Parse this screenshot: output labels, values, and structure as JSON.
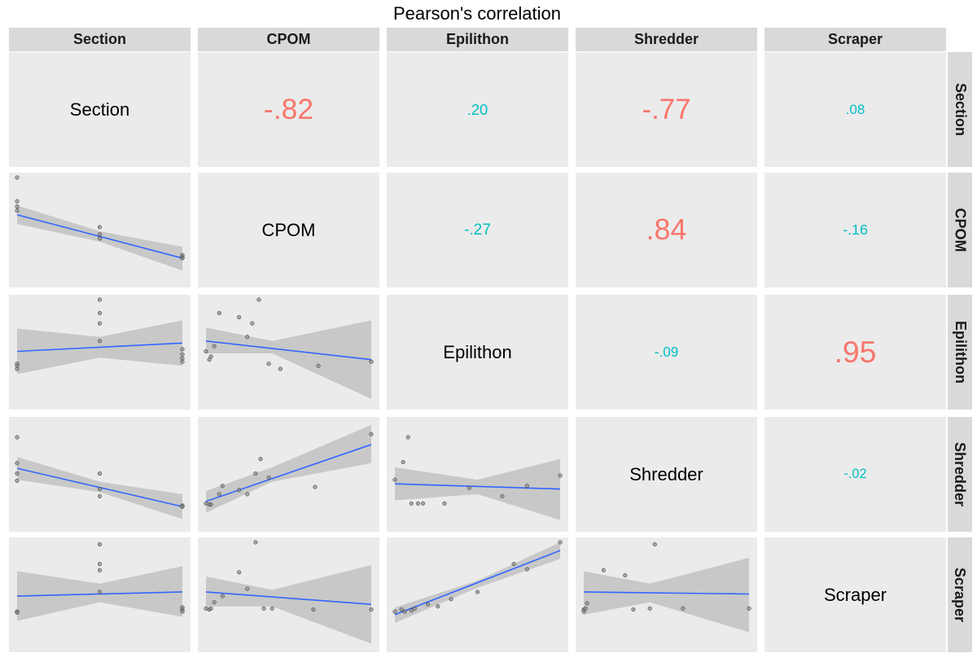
{
  "title": "Pearson's correlation",
  "chart_data": {
    "type": "scatter",
    "title": "Pearson's correlation",
    "variables": [
      "Section",
      "CPOM",
      "Epilithon",
      "Shredder",
      "Scraper"
    ],
    "colors": {
      "strong": "#f8766d",
      "weak": "#00bfc4",
      "fit_line": "#3366ff",
      "ribbon": "#c8c8c8",
      "point": "#888888"
    },
    "correlations": [
      {
        "row": "Section",
        "col": "CPOM",
        "value": -0.82,
        "label": "-.82",
        "strong": true
      },
      {
        "row": "Section",
        "col": "Epilithon",
        "value": 0.2,
        "label": ".20",
        "strong": false
      },
      {
        "row": "Section",
        "col": "Shredder",
        "value": -0.77,
        "label": "-.77",
        "strong": true
      },
      {
        "row": "Section",
        "col": "Scraper",
        "value": 0.08,
        "label": ".08",
        "strong": false
      },
      {
        "row": "CPOM",
        "col": "Epilithon",
        "value": -0.27,
        "label": "-.27",
        "strong": false
      },
      {
        "row": "CPOM",
        "col": "Shredder",
        "value": 0.84,
        "label": ".84",
        "strong": true
      },
      {
        "row": "CPOM",
        "col": "Scraper",
        "value": -0.16,
        "label": "-.16",
        "strong": false
      },
      {
        "row": "Epilithon",
        "col": "Shredder",
        "value": -0.09,
        "label": "-.09",
        "strong": false
      },
      {
        "row": "Epilithon",
        "col": "Scraper",
        "value": 0.95,
        "label": ".95",
        "strong": true
      },
      {
        "row": "Shredder",
        "col": "Scraper",
        "value": -0.02,
        "label": "-.02",
        "strong": false
      }
    ],
    "scatter_panels": [
      {
        "x": "Section",
        "y": "CPOM",
        "points": [
          [
            0,
            1
          ],
          [
            0,
            0.77
          ],
          [
            0,
            0.72
          ],
          [
            0,
            0.68
          ],
          [
            0.5,
            0.52
          ],
          [
            0.5,
            0.45
          ],
          [
            0.5,
            0.41
          ],
          [
            1,
            0.25
          ],
          [
            1,
            0.23
          ],
          [
            1,
            0.22
          ]
        ],
        "fit": [
          [
            0,
            0.64
          ],
          [
            1,
            0.22
          ]
        ],
        "band": [
          [
            0,
            0.73,
            0.55
          ],
          [
            0.5,
            0.48,
            0.38
          ],
          [
            1,
            0.33,
            0.1
          ]
        ]
      },
      {
        "x": "Section",
        "y": "Epilithon",
        "points": [
          [
            0,
            0.38
          ],
          [
            0,
            0.36
          ],
          [
            0,
            0.33
          ],
          [
            0.5,
            1
          ],
          [
            0.5,
            0.87
          ],
          [
            0.5,
            0.77
          ],
          [
            0.5,
            0.6
          ],
          [
            1,
            0.52
          ],
          [
            1,
            0.47
          ],
          [
            1,
            0.43
          ],
          [
            1,
            0.4
          ]
        ],
        "fit": [
          [
            0,
            0.5
          ],
          [
            1,
            0.58
          ]
        ],
        "band": [
          [
            0,
            0.72,
            0.28
          ],
          [
            0.5,
            0.64,
            0.44
          ],
          [
            1,
            0.8,
            0.36
          ]
        ]
      },
      {
        "x": "Section",
        "y": "Shredder",
        "points": [
          [
            0,
            0.85
          ],
          [
            0,
            0.6
          ],
          [
            0,
            0.5
          ],
          [
            0,
            0.43
          ],
          [
            0.5,
            0.5
          ],
          [
            0.5,
            0.35
          ],
          [
            0.5,
            0.28
          ],
          [
            1,
            0.19
          ],
          [
            1,
            0.18
          ],
          [
            1,
            0.18
          ]
        ],
        "fit": [
          [
            0,
            0.55
          ],
          [
            1,
            0.18
          ]
        ],
        "band": [
          [
            0,
            0.66,
            0.44
          ],
          [
            0.5,
            0.42,
            0.32
          ],
          [
            1,
            0.3,
            0.06
          ]
        ]
      },
      {
        "x": "Section",
        "y": "Scraper",
        "points": [
          [
            0,
            0.33
          ],
          [
            0,
            0.32
          ],
          [
            0.5,
            0.98
          ],
          [
            0.5,
            0.79
          ],
          [
            0.5,
            0.73
          ],
          [
            0.5,
            0.52
          ],
          [
            1,
            0.37
          ],
          [
            1,
            0.35
          ],
          [
            1,
            0.33
          ]
        ],
        "fit": [
          [
            0,
            0.48
          ],
          [
            1,
            0.52
          ]
        ],
        "band": [
          [
            0,
            0.72,
            0.24
          ],
          [
            0.5,
            0.6,
            0.42
          ],
          [
            1,
            0.77,
            0.28
          ]
        ]
      },
      {
        "x": "CPOM",
        "y": "Epilithon",
        "points": [
          [
            0,
            0.5
          ],
          [
            0.02,
            0.42
          ],
          [
            0.03,
            0.45
          ],
          [
            0.05,
            0.55
          ],
          [
            0.08,
            0.87
          ],
          [
            0.2,
            0.83
          ],
          [
            0.25,
            0.64
          ],
          [
            0.28,
            0.77
          ],
          [
            0.32,
            1
          ],
          [
            0.38,
            0.38
          ],
          [
            0.45,
            0.33
          ],
          [
            0.68,
            0.36
          ],
          [
            1,
            0.4
          ]
        ],
        "fit": [
          [
            0,
            0.6
          ],
          [
            1,
            0.42
          ]
        ],
        "band": [
          [
            0,
            0.73,
            0.48
          ],
          [
            0.4,
            0.6,
            0.48
          ],
          [
            1,
            0.8,
            0.04
          ]
        ]
      },
      {
        "x": "CPOM",
        "y": "Shredder",
        "points": [
          [
            0,
            0.21
          ],
          [
            0.02,
            0.2
          ],
          [
            0.03,
            0.2
          ],
          [
            0.08,
            0.3
          ],
          [
            0.1,
            0.38
          ],
          [
            0.2,
            0.34
          ],
          [
            0.25,
            0.3
          ],
          [
            0.3,
            0.5
          ],
          [
            0.33,
            0.64
          ],
          [
            0.38,
            0.46
          ],
          [
            0.66,
            0.37
          ],
          [
            1,
            0.88
          ]
        ],
        "fit": [
          [
            0,
            0.23
          ],
          [
            1,
            0.78
          ]
        ],
        "band": [
          [
            0,
            0.33,
            0.12
          ],
          [
            0.4,
            0.56,
            0.42
          ],
          [
            1,
            0.97,
            0.6
          ]
        ]
      },
      {
        "x": "CPOM",
        "y": "Scraper",
        "points": [
          [
            0,
            0.36
          ],
          [
            0.02,
            0.35
          ],
          [
            0.03,
            0.36
          ],
          [
            0.05,
            0.42
          ],
          [
            0.1,
            0.48
          ],
          [
            0.2,
            0.71
          ],
          [
            0.25,
            0.55
          ],
          [
            0.3,
            1
          ],
          [
            0.35,
            0.36
          ],
          [
            0.4,
            0.36
          ],
          [
            0.65,
            0.35
          ],
          [
            1,
            0.35
          ]
        ],
        "fit": [
          [
            0,
            0.52
          ],
          [
            1,
            0.4
          ]
        ],
        "band": [
          [
            0,
            0.67,
            0.38
          ],
          [
            0.4,
            0.54,
            0.38
          ],
          [
            1,
            0.78,
            0.02
          ]
        ]
      },
      {
        "x": "Epilithon",
        "y": "Shredder",
        "points": [
          [
            0,
            0.44
          ],
          [
            0.05,
            0.61
          ],
          [
            0.08,
            0.85
          ],
          [
            0.1,
            0.21
          ],
          [
            0.14,
            0.21
          ],
          [
            0.17,
            0.21
          ],
          [
            0.3,
            0.21
          ],
          [
            0.45,
            0.36
          ],
          [
            0.65,
            0.28
          ],
          [
            0.8,
            0.38
          ],
          [
            1,
            0.48
          ]
        ],
        "fit": [
          [
            0,
            0.4
          ],
          [
            1,
            0.35
          ]
        ],
        "band": [
          [
            0,
            0.56,
            0.24
          ],
          [
            0.5,
            0.44,
            0.3
          ],
          [
            1,
            0.64,
            0.05
          ]
        ]
      },
      {
        "x": "Epilithon",
        "y": "Scraper",
        "points": [
          [
            0,
            0.33
          ],
          [
            0.04,
            0.35
          ],
          [
            0.06,
            0.33
          ],
          [
            0.1,
            0.34
          ],
          [
            0.12,
            0.36
          ],
          [
            0.2,
            0.4
          ],
          [
            0.26,
            0.38
          ],
          [
            0.34,
            0.45
          ],
          [
            0.5,
            0.52
          ],
          [
            0.72,
            0.79
          ],
          [
            0.8,
            0.74
          ],
          [
            1,
            1
          ]
        ],
        "fit": [
          [
            0,
            0.3
          ],
          [
            1,
            0.92
          ]
        ],
        "band": [
          [
            0,
            0.37,
            0.22
          ],
          [
            0.5,
            0.63,
            0.56
          ],
          [
            1,
            1.0,
            0.84
          ]
        ]
      },
      {
        "x": "Shredder",
        "y": "Scraper",
        "points": [
          [
            0,
            0.35
          ],
          [
            0,
            0.33
          ],
          [
            0.01,
            0.36
          ],
          [
            0.02,
            0.41
          ],
          [
            0.12,
            0.73
          ],
          [
            0.25,
            0.68
          ],
          [
            0.3,
            0.35
          ],
          [
            0.4,
            0.36
          ],
          [
            0.43,
            0.98
          ],
          [
            0.6,
            0.36
          ],
          [
            1,
            0.36
          ]
        ],
        "fit": [
          [
            0,
            0.52
          ],
          [
            1,
            0.5
          ]
        ],
        "band": [
          [
            0,
            0.72,
            0.3
          ],
          [
            0.4,
            0.6,
            0.42
          ],
          [
            1,
            0.85,
            0.13
          ]
        ]
      }
    ]
  }
}
